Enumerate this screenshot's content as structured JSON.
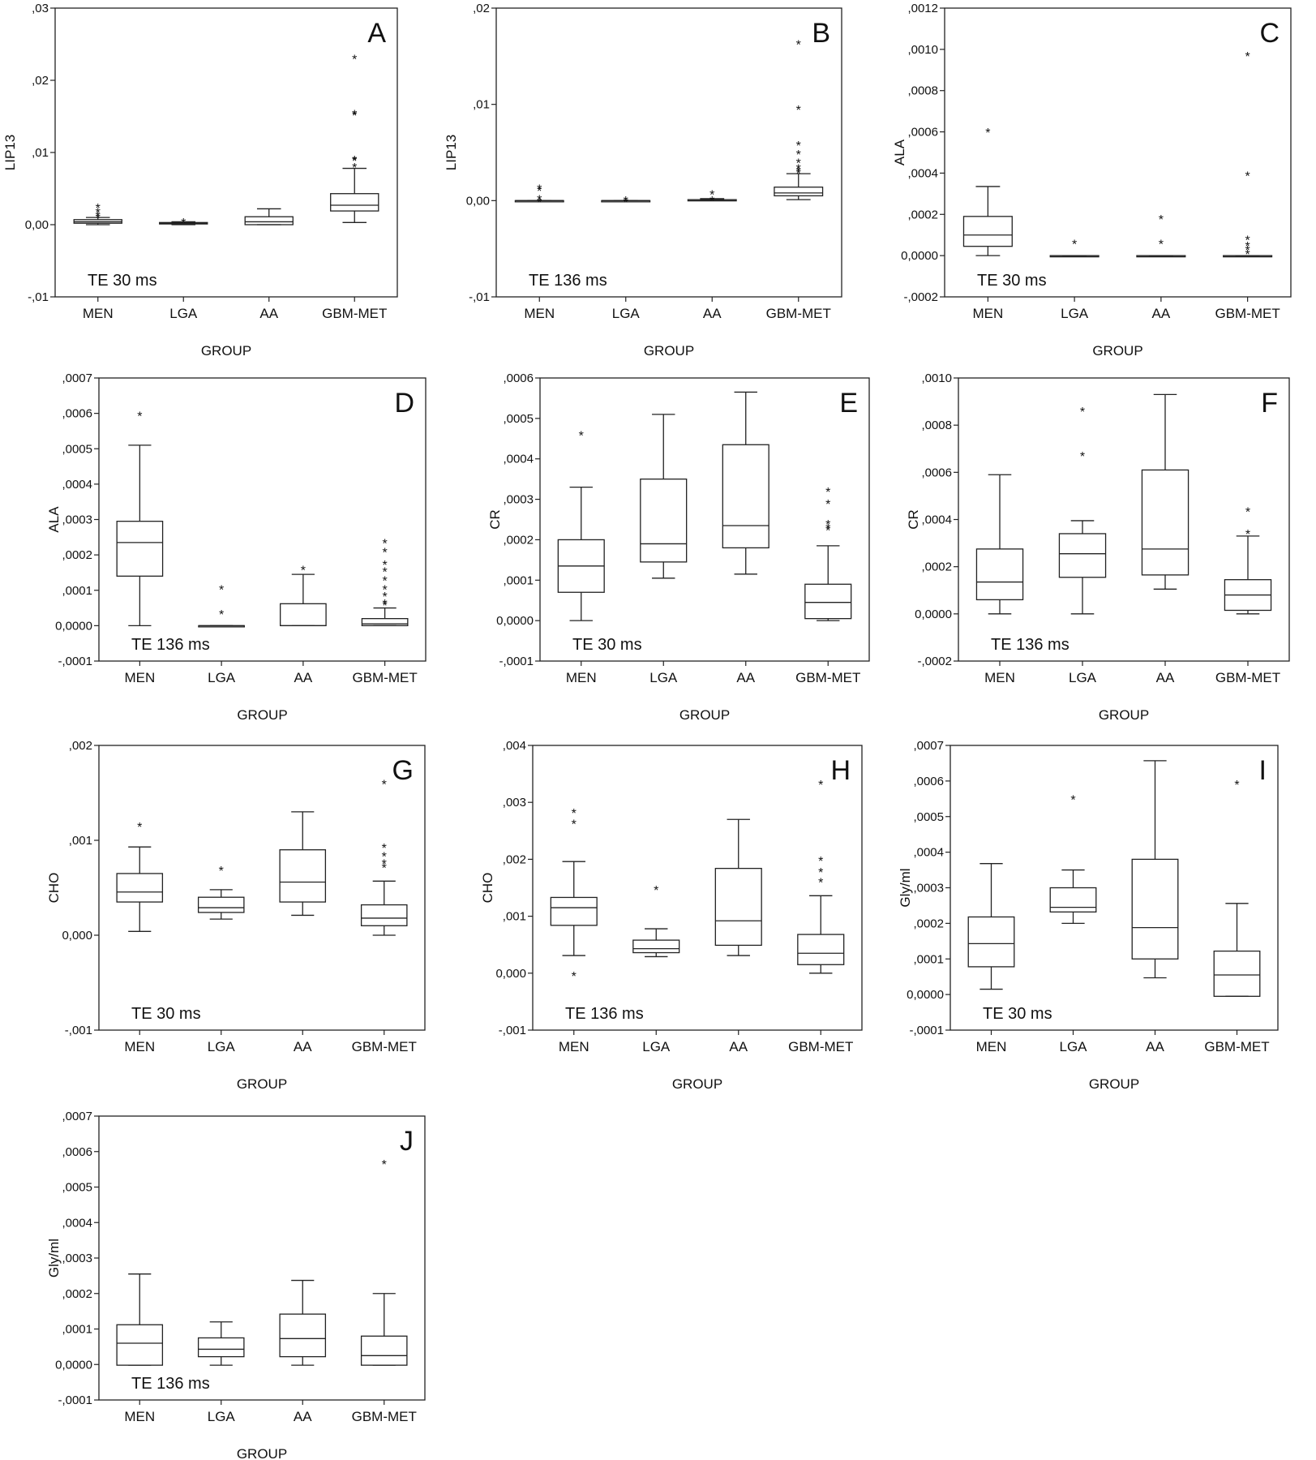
{
  "chart_data": [
    {
      "panel": "A",
      "type": "box",
      "ylabel": "LIP13",
      "xlabel": "GROUP",
      "annotation": "TE 30 ms",
      "categories": [
        "MEN",
        "LGA",
        "AA",
        "GBM-MET"
      ],
      "ylim": [
        -0.01,
        0.03
      ],
      "yticks": [
        -0.01,
        0.0,
        0.01,
        0.02,
        0.03
      ],
      "ytick_labels": [
        "-,01",
        "0,00",
        ",01",
        ",02",
        ",03"
      ],
      "boxes": [
        {
          "whislo": 0.0,
          "q1": 0.0002,
          "med": 0.0004,
          "q3": 0.0007,
          "whishi": 0.001,
          "outliers": [
            0.0013,
            0.0016,
            0.0021,
            0.0027
          ]
        },
        {
          "whislo": 0.0,
          "q1": 0.0001,
          "med": 0.0002,
          "q3": 0.0003,
          "whishi": 0.0004,
          "outliers": [
            0.0007
          ]
        },
        {
          "whislo": 0.0,
          "q1": 0.0,
          "med": 0.0004,
          "q3": 0.0011,
          "whishi": 0.0022,
          "outliers": []
        },
        {
          "whislo": 0.0003,
          "q1": 0.0019,
          "med": 0.0027,
          "q3": 0.0043,
          "whishi": 0.0078,
          "outliers": [
            0.0083,
            0.0092,
            0.0093,
            0.0155,
            0.0157,
            0.0233
          ]
        }
      ]
    },
    {
      "panel": "B",
      "type": "box",
      "ylabel": "LIP13",
      "xlabel": "GROUP",
      "annotation": "TE 136 ms",
      "categories": [
        "MEN",
        "LGA",
        "AA",
        "GBM-MET"
      ],
      "ylim": [
        -0.01,
        0.02
      ],
      "yticks": [
        -0.01,
        0.0,
        0.01,
        0.02
      ],
      "ytick_labels": [
        "-,01",
        "0,00",
        ",01",
        ",02"
      ],
      "boxes": [
        {
          "whislo": 0.0,
          "q1": 0.0,
          "med": 0.0,
          "q3": 0.0,
          "whishi": 0.0,
          "outliers": [
            0.0001,
            0.0004,
            0.0013,
            0.0015
          ]
        },
        {
          "whislo": 0.0,
          "q1": 0.0,
          "med": 0.0,
          "q3": 0.0,
          "whishi": 0.0,
          "outliers": [
            0.0001,
            0.0003
          ]
        },
        {
          "whislo": 0.0,
          "q1": 0.0,
          "med": 0.0001,
          "q3": 0.0001,
          "whishi": 0.0002,
          "outliers": [
            0.0003,
            0.0009
          ]
        },
        {
          "whislo": 0.0001,
          "q1": 0.0005,
          "med": 0.0008,
          "q3": 0.0014,
          "whishi": 0.0028,
          "outliers": [
            0.0031,
            0.0033,
            0.0036,
            0.0042,
            0.0051,
            0.006,
            0.0097,
            0.0165
          ]
        }
      ]
    },
    {
      "panel": "C",
      "type": "box",
      "ylabel": "ALA",
      "xlabel": "GROUP",
      "annotation": "TE 30 ms",
      "categories": [
        "MEN",
        "LGA",
        "AA",
        "GBM-MET"
      ],
      "ylim": [
        -0.0002,
        0.0012
      ],
      "yticks": [
        -0.0002,
        0.0,
        0.0002,
        0.0004,
        0.0006,
        0.0008,
        0.001,
        0.0012
      ],
      "ytick_labels": [
        "-,0002",
        "0,0000",
        ",0002",
        ",0004",
        ",0006",
        ",0008",
        ",0010",
        ",0012"
      ],
      "boxes": [
        {
          "whislo": 0.0,
          "q1": 4.5e-05,
          "med": 0.0001,
          "q3": 0.00019,
          "whishi": 0.000335,
          "outliers": [
            0.00061
          ]
        },
        {
          "whislo": 0.0,
          "q1": 0.0,
          "med": 0.0,
          "q3": 0.0,
          "whishi": 0.0,
          "outliers": [
            7e-05
          ]
        },
        {
          "whislo": 0.0,
          "q1": 0.0,
          "med": 0.0,
          "q3": 0.0,
          "whishi": 0.0,
          "outliers": [
            7e-05,
            0.00019
          ]
        },
        {
          "whislo": 0.0,
          "q1": 0.0,
          "med": 0.0,
          "q3": 0.0,
          "whishi": 0.0,
          "outliers": [
            2e-05,
            4e-05,
            6e-05,
            9e-05,
            0.0004,
            0.00098
          ]
        }
      ]
    },
    {
      "panel": "D",
      "type": "box",
      "ylabel": "ALA",
      "xlabel": "GROUP",
      "annotation": "TE 136 ms",
      "categories": [
        "MEN",
        "LGA",
        "AA",
        "GBM-MET"
      ],
      "ylim": [
        -0.0001,
        0.0007
      ],
      "yticks": [
        -0.0001,
        0.0,
        0.0001,
        0.0002,
        0.0003,
        0.0004,
        0.0005,
        0.0006,
        0.0007
      ],
      "ytick_labels": [
        "-,0001",
        "0,0000",
        ",0001",
        ",0002",
        ",0003",
        ",0004",
        ",0005",
        ",0006",
        ",0007"
      ],
      "boxes": [
        {
          "whislo": 0.0,
          "q1": 0.00014,
          "med": 0.000235,
          "q3": 0.000295,
          "whishi": 0.00051,
          "outliers": [
            0.0006
          ]
        },
        {
          "whislo": 0.0,
          "q1": 0.0,
          "med": 0.0,
          "q3": 0.0,
          "whishi": 0.0,
          "outliers": [
            4e-05,
            0.00011
          ]
        },
        {
          "whislo": 0.0,
          "q1": 0.0,
          "med": 0.0,
          "q3": 6.2e-05,
          "whishi": 0.000145,
          "outliers": [
            0.000165
          ]
        },
        {
          "whislo": 0.0,
          "q1": 0.0,
          "med": 5e-06,
          "q3": 2e-05,
          "whishi": 5e-05,
          "outliers": [
            6.5e-05,
            7e-05,
            9e-05,
            0.00011,
            0.000135,
            0.00016,
            0.00018,
            0.000215,
            0.00024
          ]
        }
      ]
    },
    {
      "panel": "E",
      "type": "box",
      "ylabel": "CR",
      "xlabel": "GROUP",
      "annotation": "TE 30 ms",
      "categories": [
        "MEN",
        "LGA",
        "AA",
        "GBM-MET"
      ],
      "ylim": [
        -0.0001,
        0.0006
      ],
      "yticks": [
        -0.0001,
        0.0,
        0.0001,
        0.0002,
        0.0003,
        0.0004,
        0.0005,
        0.0006
      ],
      "ytick_labels": [
        "-,0001",
        "0,0000",
        ",0001",
        ",0002",
        ",0003",
        ",0004",
        ",0005",
        ",0006"
      ],
      "boxes": [
        {
          "whislo": 0.0,
          "q1": 7e-05,
          "med": 0.000135,
          "q3": 0.0002,
          "whishi": 0.00033,
          "outliers": [
            0.000465
          ]
        },
        {
          "whislo": 0.000105,
          "q1": 0.000145,
          "med": 0.00019,
          "q3": 0.00035,
          "whishi": 0.00051,
          "outliers": []
        },
        {
          "whislo": 0.000115,
          "q1": 0.00018,
          "med": 0.000235,
          "q3": 0.000435,
          "whishi": 0.000565,
          "outliers": []
        },
        {
          "whislo": 0.0,
          "q1": 5e-06,
          "med": 4.5e-05,
          "q3": 9e-05,
          "whishi": 0.000185,
          "outliers": [
            0.00023,
            0.000235,
            0.000245,
            0.000295,
            0.000325
          ]
        }
      ]
    },
    {
      "panel": "F",
      "type": "box",
      "ylabel": "CR",
      "xlabel": "GROUP",
      "annotation": "TE 136 ms",
      "categories": [
        "MEN",
        "LGA",
        "AA",
        "GBM-MET"
      ],
      "ylim": [
        -0.0002,
        0.001
      ],
      "yticks": [
        -0.0002,
        0.0,
        0.0002,
        0.0004,
        0.0006,
        0.0008,
        0.001
      ],
      "ytick_labels": [
        "-,0002",
        "0,0000",
        ",0002",
        ",0004",
        ",0006",
        ",0008",
        ",0010"
      ],
      "boxes": [
        {
          "whislo": 0.0,
          "q1": 6e-05,
          "med": 0.000135,
          "q3": 0.000275,
          "whishi": 0.00059,
          "outliers": []
        },
        {
          "whislo": 0.0,
          "q1": 0.000155,
          "med": 0.000255,
          "q3": 0.00034,
          "whishi": 0.000395,
          "outliers": [
            0.00068,
            0.00087
          ]
        },
        {
          "whislo": 0.000105,
          "q1": 0.000165,
          "med": 0.000275,
          "q3": 0.00061,
          "whishi": 0.00093,
          "outliers": []
        },
        {
          "whislo": 0.0,
          "q1": 1.5e-05,
          "med": 8e-05,
          "q3": 0.000145,
          "whishi": 0.00033,
          "outliers": [
            0.00035,
            0.000445
          ]
        }
      ]
    },
    {
      "panel": "G",
      "type": "box",
      "ylabel": "CHO",
      "xlabel": "GROUP",
      "annotation": "TE 30 ms",
      "categories": [
        "MEN",
        "LGA",
        "AA",
        "GBM-MET"
      ],
      "ylim": [
        -0.001,
        0.002
      ],
      "yticks": [
        -0.001,
        0.0,
        0.001,
        0.002
      ],
      "ytick_labels": [
        "-,001",
        "0,000",
        ",001",
        ",002"
      ],
      "boxes": [
        {
          "whislo": 4e-05,
          "q1": 0.00035,
          "med": 0.000455,
          "q3": 0.00065,
          "whishi": 0.00093,
          "outliers": [
            0.00117
          ]
        },
        {
          "whislo": 0.00017,
          "q1": 0.00024,
          "med": 0.00029,
          "q3": 0.0004,
          "whishi": 0.00048,
          "outliers": [
            0.00071
          ]
        },
        {
          "whislo": 0.00021,
          "q1": 0.00035,
          "med": 0.00056,
          "q3": 0.0009,
          "whishi": 0.0013,
          "outliers": []
        },
        {
          "whislo": 0.0,
          "q1": 0.0001,
          "med": 0.00018,
          "q3": 0.00032,
          "whishi": 0.00057,
          "outliers": [
            0.00074,
            0.00078,
            0.00086,
            0.00095,
            0.00162
          ]
        }
      ]
    },
    {
      "panel": "H",
      "type": "box",
      "ylabel": "CHO",
      "xlabel": "GROUP",
      "annotation": "TE 136 ms",
      "categories": [
        "MEN",
        "LGA",
        "AA",
        "GBM-MET"
      ],
      "ylim": [
        -0.001,
        0.004
      ],
      "yticks": [
        -0.001,
        0.0,
        0.001,
        0.002,
        0.003,
        0.004
      ],
      "ytick_labels": [
        "-,001",
        "0,000",
        ",001",
        ",002",
        ",003",
        ",004"
      ],
      "boxes": [
        {
          "whislo": 0.00031,
          "q1": 0.00084,
          "med": 0.00115,
          "q3": 0.00133,
          "whishi": 0.00196,
          "outliers": [
            0.0,
            0.00267,
            0.00286
          ]
        },
        {
          "whislo": 0.00029,
          "q1": 0.00036,
          "med": 0.00043,
          "q3": 0.00058,
          "whishi": 0.00078,
          "outliers": [
            0.00151
          ]
        },
        {
          "whislo": 0.00031,
          "q1": 0.00049,
          "med": 0.00092,
          "q3": 0.00184,
          "whishi": 0.0027,
          "outliers": []
        },
        {
          "whislo": 0.0,
          "q1": 0.00015,
          "med": 0.00035,
          "q3": 0.00068,
          "whishi": 0.00136,
          "outliers": [
            0.00164,
            0.00182,
            0.00202,
            0.00336
          ]
        }
      ]
    },
    {
      "panel": "I",
      "type": "box",
      "ylabel": "Gly/ml",
      "xlabel": "GROUP",
      "annotation": "TE 30 ms",
      "categories": [
        "MEN",
        "LGA",
        "AA",
        "GBM-MET"
      ],
      "ylim": [
        -0.0001,
        0.0007
      ],
      "yticks": [
        -0.0001,
        0.0,
        0.0001,
        0.0002,
        0.0003,
        0.0004,
        0.0005,
        0.0006,
        0.0007
      ],
      "ytick_labels": [
        "-,0001",
        "0,0000",
        ",0001",
        ",0002",
        ",0003",
        ",0004",
        ",0005",
        ",0006",
        ",0007"
      ],
      "boxes": [
        {
          "whislo": 1.5e-05,
          "q1": 7.8e-05,
          "med": 0.000143,
          "q3": 0.000218,
          "whishi": 0.000368,
          "outliers": []
        },
        {
          "whislo": 0.0002,
          "q1": 0.000232,
          "med": 0.000245,
          "q3": 0.0003,
          "whishi": 0.00035,
          "outliers": [
            0.000555
          ]
        },
        {
          "whislo": 4.7e-05,
          "q1": 0.0001,
          "med": 0.000188,
          "q3": 0.00038,
          "whishi": 0.000657,
          "outliers": []
        },
        {
          "whislo": -5e-06,
          "q1": -5e-06,
          "med": 5.5e-05,
          "q3": 0.000122,
          "whishi": 0.000256,
          "outliers": [
            0.000598
          ]
        }
      ]
    },
    {
      "panel": "J",
      "type": "box",
      "ylabel": "Gly/ml",
      "xlabel": "GROUP",
      "annotation": "TE 136 ms",
      "categories": [
        "MEN",
        "LGA",
        "AA",
        "GBM-MET"
      ],
      "ylim": [
        -0.0001,
        0.0007
      ],
      "yticks": [
        -0.0001,
        0.0,
        0.0001,
        0.0002,
        0.0003,
        0.0004,
        0.0005,
        0.0006,
        0.0007
      ],
      "ytick_labels": [
        "-,0001",
        "0,0000",
        ",0001",
        ",0002",
        ",0003",
        ",0004",
        ",0005",
        ",0006",
        ",0007"
      ],
      "boxes": [
        {
          "whislo": -2e-06,
          "q1": -2e-06,
          "med": 6e-05,
          "q3": 0.000112,
          "whishi": 0.000255,
          "outliers": []
        },
        {
          "whislo": -2e-06,
          "q1": 2.2e-05,
          "med": 4.3e-05,
          "q3": 7.5e-05,
          "whishi": 0.00012,
          "outliers": []
        },
        {
          "whislo": -2e-06,
          "q1": 2.2e-05,
          "med": 7.3e-05,
          "q3": 0.000142,
          "whishi": 0.000237,
          "outliers": []
        },
        {
          "whislo": -2e-06,
          "q1": -2e-06,
          "med": 2.5e-05,
          "q3": 8e-05,
          "whishi": 0.0002,
          "outliers": [
            0.000572
          ]
        }
      ]
    }
  ]
}
